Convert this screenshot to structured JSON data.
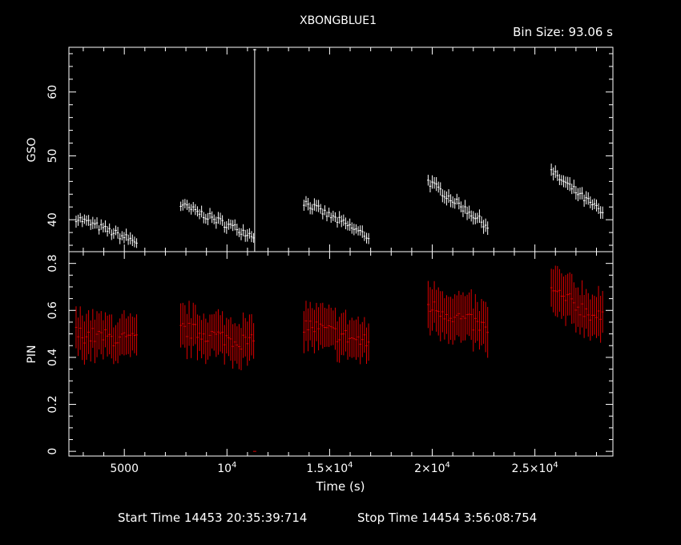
{
  "title": "XBONGBLUE1",
  "bin_size": "Bin Size: 93.06 s",
  "footer": {
    "start": "Start Time 14453 20:35:39:714",
    "stop": "Stop Time 14454  3:56:08:754"
  },
  "colors": {
    "background": "#000000",
    "frame": "#ffffff",
    "gso": "#ffffff",
    "pin": "#e00000"
  },
  "chart_data": [
    {
      "type": "scatter",
      "ylabel": "GSO",
      "xlim": [
        2300,
        28800
      ],
      "ylim": [
        35,
        67
      ],
      "yticks": [
        40,
        50,
        60
      ],
      "segments": [
        {
          "x0": 2650,
          "x1": 5600,
          "y0": 40.3,
          "y1": 36.5,
          "n": 30,
          "err": 0.9
        },
        {
          "x0": 7750,
          "x1": 11300,
          "y0": 42.3,
          "y1": 37.5,
          "n": 36,
          "err": 0.9
        },
        {
          "x0": 13750,
          "x1": 16900,
          "y0": 42.8,
          "y1": 37.3,
          "n": 32,
          "err": 0.9
        },
        {
          "x0": 19800,
          "x1": 22700,
          "y0": 46.0,
          "y1": 39.0,
          "n": 30,
          "err": 1.0
        },
        {
          "x0": 25800,
          "x1": 28300,
          "y0": 47.5,
          "y1": 41.0,
          "n": 26,
          "err": 1.0
        }
      ],
      "spike": {
        "x": 11350,
        "y_low": 35,
        "y_high": 67
      }
    },
    {
      "type": "scatter",
      "xlabel": "Time (s)",
      "ylabel": "PIN",
      "xlim": [
        2300,
        28800
      ],
      "ylim": [
        -0.02,
        0.85
      ],
      "yticks": [
        "0",
        "0.2",
        "0.4",
        "0.6",
        "0.8"
      ],
      "xticks": [
        {
          "value": 5000,
          "mantissa": "5000",
          "power": ""
        },
        {
          "value": 10000,
          "mantissa": "10",
          "power": "4"
        },
        {
          "value": 15000,
          "mantissa": "1.5×10",
          "power": "4"
        },
        {
          "value": 20000,
          "mantissa": "2×10",
          "power": "4"
        },
        {
          "value": 25000,
          "mantissa": "2.5×10",
          "power": "4"
        }
      ],
      "segments": [
        {
          "x0": 2650,
          "x1": 5600,
          "y0": 0.5,
          "y1": 0.47,
          "n": 30,
          "err": 0.09
        },
        {
          "x0": 7750,
          "x1": 11300,
          "y0": 0.52,
          "y1": 0.46,
          "n": 36,
          "err": 0.09
        },
        {
          "x0": 13750,
          "x1": 16900,
          "y0": 0.54,
          "y1": 0.46,
          "n": 32,
          "err": 0.09
        },
        {
          "x0": 19800,
          "x1": 22700,
          "y0": 0.62,
          "y1": 0.52,
          "n": 30,
          "err": 0.1
        },
        {
          "x0": 25800,
          "x1": 28300,
          "y0": 0.68,
          "y1": 0.56,
          "n": 26,
          "err": 0.1
        }
      ],
      "spike": {
        "x": 11350,
        "y": 0.0
      }
    }
  ]
}
